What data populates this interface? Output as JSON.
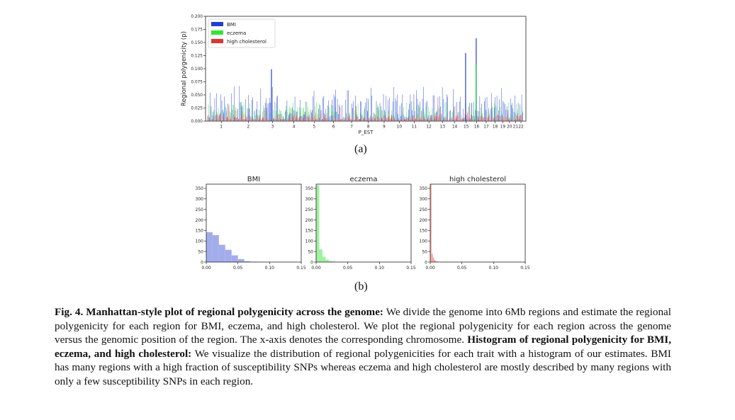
{
  "figure": {
    "subfig_a": "(a)",
    "subfig_b": "(b)"
  },
  "caption": {
    "label": "Fig. 4.",
    "title1": "Manhattan-style plot of regional polygenicity across the genome:",
    "text1": "We divide the genome into 6Mb regions and estimate the regional polygenicity for each region for BMI, eczema, and high cholesterol. We plot the regional polygenicity for each region across the genome versus the genomic position of the region. The x-axis denotes the corresponding chromosome.",
    "title2": "Histogram of regional polygenicity for BMI, eczema, and high cholesterol:",
    "text2": "We visualize the distribution of regional polygenicities for each trait with a histogram of our estimates. BMI has many regions with a high fraction of susceptibility SNPs whereas eczema and high cholesterol are mostly described by many regions with only a few susceptibility SNPs in each region."
  },
  "colors": {
    "bmi": "#1f3fd6",
    "eczema": "#2ee82e",
    "cholesterol": "#e8322e",
    "bmi_hist": "#a3adec",
    "eczema_hist": "#9ef29e",
    "chol_hist": "#f3a3a1"
  },
  "chart_data": [
    {
      "type": "bar",
      "title": "",
      "xlabel": "P_EST",
      "ylabel": "Regional polygenicity (p)",
      "ylim": [
        0,
        0.2
      ],
      "yticks": [
        "0.000",
        "0.025",
        "0.050",
        "0.075",
        "0.100",
        "0.125",
        "0.150",
        "0.175",
        "0.200"
      ],
      "legend": [
        "BMI",
        "eczema",
        "high cholesterol"
      ],
      "legend_position": "top-left",
      "categories": [
        "1",
        "2",
        "3",
        "4",
        "5",
        "6",
        "7",
        "8",
        "9",
        "10",
        "11",
        "12",
        "13",
        "14",
        "15",
        "16",
        "17",
        "18",
        "19",
        "20",
        "21",
        "22"
      ],
      "peaks": [
        {
          "chromosome": "3",
          "series": "BMI",
          "value": 0.099
        },
        {
          "chromosome": "15",
          "series": "BMI",
          "value": 0.13
        },
        {
          "chromosome": "16",
          "series": "BMI",
          "value": 0.158
        },
        {
          "chromosome": "16",
          "series": "eczema",
          "value": 0.108
        }
      ]
    },
    {
      "type": "bar",
      "title": "BMI",
      "xlim": [
        0,
        0.15
      ],
      "xticks": [
        "0.00",
        "0.05",
        "0.10",
        "0.15"
      ],
      "ylim": [
        0,
        370
      ],
      "yticks": [
        "0",
        "50",
        "100",
        "150",
        "200",
        "250",
        "300",
        "350"
      ],
      "bin_width": 0.01,
      "values": [
        142,
        128,
        82,
        58,
        32,
        14,
        4,
        2
      ]
    },
    {
      "type": "bar",
      "title": "eczema",
      "xlim": [
        0,
        0.15
      ],
      "xticks": [
        "0.00",
        "0.05",
        "0.10",
        "0.15"
      ],
      "ylim": [
        0,
        370
      ],
      "yticks": [
        "0",
        "50",
        "100",
        "150",
        "200",
        "250",
        "300",
        "350"
      ],
      "bin_width": 0.005,
      "values": [
        365,
        60,
        25,
        12,
        5,
        3,
        1
      ]
    },
    {
      "type": "bar",
      "title": "high cholesterol",
      "xlim": [
        0,
        0.15
      ],
      "xticks": [
        "0.00",
        "0.05",
        "0.10",
        "0.15"
      ],
      "ylim": [
        0,
        370
      ],
      "yticks": [
        "0",
        "50",
        "100",
        "150",
        "200",
        "250",
        "300",
        "350"
      ],
      "bin_width": 0.002,
      "values": [
        368,
        40,
        22,
        10,
        5,
        3,
        2,
        1
      ]
    }
  ]
}
